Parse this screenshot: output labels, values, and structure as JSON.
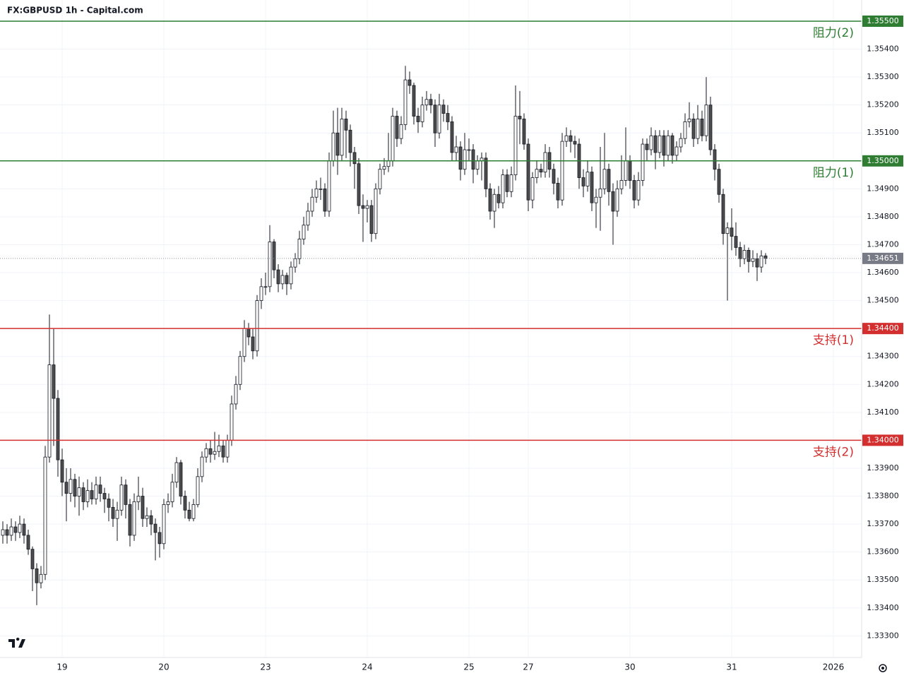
{
  "chart_data": {
    "type": "candlestick",
    "title": "FX:GBPUSD 1h - Capital.com",
    "ylim": [
      1.33225,
      1.355
    ],
    "xlim": [
      -0.5,
      202.5
    ],
    "yticks": [
      {
        "value": 1.333,
        "label": "1.33300"
      },
      {
        "value": 1.334,
        "label": "1.33400"
      },
      {
        "value": 1.335,
        "label": "1.33500"
      },
      {
        "value": 1.336,
        "label": "1.33600"
      },
      {
        "value": 1.337,
        "label": "1.33700"
      },
      {
        "value": 1.338,
        "label": "1.33800"
      },
      {
        "value": 1.339,
        "label": "1.33900"
      },
      {
        "value": 1.34,
        "label": "1.34000"
      },
      {
        "value": 1.341,
        "label": "1.34100"
      },
      {
        "value": 1.342,
        "label": "1.34200"
      },
      {
        "value": 1.343,
        "label": "1.34300"
      },
      {
        "value": 1.344,
        "label": "1.34400"
      },
      {
        "value": 1.345,
        "label": "1.34500"
      },
      {
        "value": 1.346,
        "label": "1.34600"
      },
      {
        "value": 1.347,
        "label": "1.34700"
      },
      {
        "value": 1.348,
        "label": "1.34800"
      },
      {
        "value": 1.349,
        "label": "1.34900"
      },
      {
        "value": 1.35,
        "label": "1.35000"
      },
      {
        "value": 1.351,
        "label": "1.35100"
      },
      {
        "value": 1.352,
        "label": "1.35200"
      },
      {
        "value": 1.353,
        "label": "1.35300"
      },
      {
        "value": 1.354,
        "label": "1.35400"
      }
    ],
    "xticks": [
      {
        "value": 14,
        "label": "19"
      },
      {
        "value": 38,
        "label": "20"
      },
      {
        "value": 62,
        "label": "23"
      },
      {
        "value": 86,
        "label": "24"
      },
      {
        "value": 110,
        "label": "25"
      },
      {
        "value": 124,
        "label": "27"
      },
      {
        "value": 148,
        "label": "30"
      },
      {
        "value": 172,
        "label": "31"
      },
      {
        "value": 196,
        "label": "2026"
      }
    ],
    "grid": true,
    "up_color": "#ffffff",
    "down_color": "#4d4d4d",
    "levels": [
      {
        "label": "阻力(2)",
        "value": 1.355,
        "value_label": "1.35500",
        "color": "#2e7d32"
      },
      {
        "label": "阻力(1)",
        "value": 1.35,
        "value_label": "1.35000",
        "color": "#2e7d32"
      },
      {
        "label": "支持(1)",
        "value": 1.344,
        "value_label": "1.34400",
        "color": "#d32f2f"
      },
      {
        "label": "支持(2)",
        "value": 1.34,
        "value_label": "1.34000",
        "color": "#d32f2f"
      }
    ],
    "last_price": {
      "value": 1.34651,
      "label": "1.34651"
    },
    "ohlc": [
      [
        1.3366,
        1.3371,
        1.3363,
        1.3368
      ],
      [
        1.3368,
        1.337,
        1.3363,
        1.3366
      ],
      [
        1.3366,
        1.3372,
        1.3364,
        1.3369
      ],
      [
        1.3369,
        1.3371,
        1.3364,
        1.3367
      ],
      [
        1.3367,
        1.3373,
        1.3365,
        1.337
      ],
      [
        1.337,
        1.3372,
        1.3363,
        1.3366
      ],
      [
        1.3366,
        1.3368,
        1.3359,
        1.3361
      ],
      [
        1.3361,
        1.3362,
        1.3346,
        1.3354
      ],
      [
        1.3354,
        1.3356,
        1.3341,
        1.3349
      ],
      [
        1.3349,
        1.3355,
        1.3347,
        1.3352
      ],
      [
        1.3352,
        1.3398,
        1.335,
        1.3394
      ],
      [
        1.3394,
        1.3445,
        1.3392,
        1.3427
      ],
      [
        1.3427,
        1.344,
        1.3398,
        1.3415
      ],
      [
        1.3415,
        1.3418,
        1.3387,
        1.3393
      ],
      [
        1.3393,
        1.3397,
        1.338,
        1.3385
      ],
      [
        1.3385,
        1.339,
        1.3371,
        1.3381
      ],
      [
        1.3381,
        1.339,
        1.3378,
        1.3386
      ],
      [
        1.3386,
        1.3388,
        1.3376,
        1.338
      ],
      [
        1.338,
        1.3387,
        1.3373,
        1.3383
      ],
      [
        1.3383,
        1.3385,
        1.3375,
        1.3378
      ],
      [
        1.3378,
        1.3386,
        1.3376,
        1.3382
      ],
      [
        1.3382,
        1.3385,
        1.3377,
        1.3379
      ],
      [
        1.3379,
        1.3387,
        1.3377,
        1.3384
      ],
      [
        1.3384,
        1.3387,
        1.3378,
        1.3381
      ],
      [
        1.3381,
        1.3383,
        1.3374,
        1.3379
      ],
      [
        1.3379,
        1.3381,
        1.3371,
        1.3376
      ],
      [
        1.3376,
        1.3379,
        1.3369,
        1.3372
      ],
      [
        1.3372,
        1.3378,
        1.3364,
        1.3375
      ],
      [
        1.3375,
        1.3387,
        1.3373,
        1.3384
      ],
      [
        1.3384,
        1.3386,
        1.3372,
        1.3377
      ],
      [
        1.3377,
        1.3379,
        1.3362,
        1.3366
      ],
      [
        1.3366,
        1.3381,
        1.3364,
        1.3378
      ],
      [
        1.3378,
        1.3387,
        1.3375,
        1.338
      ],
      [
        1.338,
        1.3383,
        1.3369,
        1.3372
      ],
      [
        1.3372,
        1.3376,
        1.3369,
        1.3373
      ],
      [
        1.3373,
        1.3375,
        1.3366,
        1.337
      ],
      [
        1.337,
        1.3372,
        1.3357,
        1.3367
      ],
      [
        1.3367,
        1.3369,
        1.3358,
        1.3363
      ],
      [
        1.3363,
        1.3379,
        1.3361,
        1.3377
      ],
      [
        1.3377,
        1.3381,
        1.3374,
        1.3378
      ],
      [
        1.3378,
        1.3388,
        1.3376,
        1.3385
      ],
      [
        1.3385,
        1.3394,
        1.3383,
        1.3392
      ],
      [
        1.3392,
        1.3393,
        1.3377,
        1.338
      ],
      [
        1.338,
        1.3382,
        1.3372,
        1.3375
      ],
      [
        1.3375,
        1.3378,
        1.3371,
        1.3372
      ],
      [
        1.3372,
        1.3379,
        1.3371,
        1.3377
      ],
      [
        1.3377,
        1.339,
        1.3376,
        1.3387
      ],
      [
        1.3387,
        1.3396,
        1.3385,
        1.3394
      ],
      [
        1.3394,
        1.3399,
        1.3392,
        1.3397
      ],
      [
        1.3397,
        1.34,
        1.3392,
        1.3395
      ],
      [
        1.3395,
        1.3403,
        1.3393,
        1.3396
      ],
      [
        1.3396,
        1.3402,
        1.3394,
        1.3398
      ],
      [
        1.3398,
        1.34,
        1.3392,
        1.3394
      ],
      [
        1.3394,
        1.3402,
        1.3392,
        1.34
      ],
      [
        1.34,
        1.3416,
        1.3398,
        1.3413
      ],
      [
        1.3413,
        1.3423,
        1.3411,
        1.342
      ],
      [
        1.342,
        1.3432,
        1.3418,
        1.343
      ],
      [
        1.343,
        1.3443,
        1.3428,
        1.344
      ],
      [
        1.344,
        1.3442,
        1.3434,
        1.3437
      ],
      [
        1.3437,
        1.344,
        1.3429,
        1.3432
      ],
      [
        1.3432,
        1.3452,
        1.343,
        1.345
      ],
      [
        1.345,
        1.3458,
        1.3447,
        1.3455
      ],
      [
        1.3455,
        1.346,
        1.3452,
        1.3455
      ],
      [
        1.3455,
        1.3477,
        1.3453,
        1.3471
      ],
      [
        1.3471,
        1.3472,
        1.3458,
        1.3461
      ],
      [
        1.3461,
        1.3463,
        1.3453,
        1.3456
      ],
      [
        1.3456,
        1.3461,
        1.3454,
        1.3459
      ],
      [
        1.3459,
        1.346,
        1.3452,
        1.3456
      ],
      [
        1.3456,
        1.3464,
        1.3454,
        1.3462
      ],
      [
        1.3462,
        1.3467,
        1.346,
        1.3465
      ],
      [
        1.3465,
        1.3475,
        1.3463,
        1.3472
      ],
      [
        1.3472,
        1.348,
        1.347,
        1.3477
      ],
      [
        1.3477,
        1.3485,
        1.3475,
        1.3482
      ],
      [
        1.3482,
        1.349,
        1.348,
        1.3487
      ],
      [
        1.3487,
        1.3493,
        1.3485,
        1.349
      ],
      [
        1.349,
        1.3494,
        1.3486,
        1.349
      ],
      [
        1.349,
        1.3492,
        1.348,
        1.3482
      ],
      [
        1.3482,
        1.3503,
        1.348,
        1.35
      ],
      [
        1.35,
        1.3518,
        1.3498,
        1.351
      ],
      [
        1.351,
        1.3519,
        1.3495,
        1.3502
      ],
      [
        1.3502,
        1.3519,
        1.35,
        1.3515
      ],
      [
        1.3515,
        1.3518,
        1.3501,
        1.3511
      ],
      [
        1.3511,
        1.3513,
        1.3498,
        1.3503
      ],
      [
        1.3503,
        1.3505,
        1.349,
        1.3499
      ],
      [
        1.3499,
        1.3501,
        1.3481,
        1.3484
      ],
      [
        1.3484,
        1.3488,
        1.3471,
        1.3483
      ],
      [
        1.3483,
        1.3486,
        1.3478,
        1.3484
      ],
      [
        1.3484,
        1.3486,
        1.3471,
        1.3474
      ],
      [
        1.3474,
        1.3492,
        1.3472,
        1.349
      ],
      [
        1.349,
        1.3499,
        1.3488,
        1.3497
      ],
      [
        1.3497,
        1.3501,
        1.3495,
        1.3498
      ],
      [
        1.3498,
        1.351,
        1.3496,
        1.35
      ],
      [
        1.35,
        1.3519,
        1.3498,
        1.3516
      ],
      [
        1.3516,
        1.3518,
        1.3505,
        1.3508
      ],
      [
        1.3508,
        1.3516,
        1.3506,
        1.3513
      ],
      [
        1.3513,
        1.3534,
        1.3511,
        1.3529
      ],
      [
        1.3529,
        1.3532,
        1.3524,
        1.3527
      ],
      [
        1.3527,
        1.3528,
        1.3513,
        1.3516
      ],
      [
        1.3516,
        1.3519,
        1.351,
        1.3514
      ],
      [
        1.3514,
        1.3523,
        1.3512,
        1.352
      ],
      [
        1.352,
        1.3525,
        1.3518,
        1.3522
      ],
      [
        1.3522,
        1.3524,
        1.3517,
        1.352
      ],
      [
        1.352,
        1.3522,
        1.3505,
        1.351
      ],
      [
        1.351,
        1.3524,
        1.3508,
        1.352
      ],
      [
        1.352,
        1.3522,
        1.3514,
        1.3517
      ],
      [
        1.3517,
        1.352,
        1.3511,
        1.3514
      ],
      [
        1.3514,
        1.3516,
        1.35,
        1.3503
      ],
      [
        1.3503,
        1.3509,
        1.35,
        1.3505
      ],
      [
        1.3505,
        1.3507,
        1.3493,
        1.3497
      ],
      [
        1.3497,
        1.351,
        1.3495,
        1.3504
      ],
      [
        1.3504,
        1.3508,
        1.35,
        1.3504
      ],
      [
        1.3504,
        1.3506,
        1.3492,
        1.3497
      ],
      [
        1.3497,
        1.3502,
        1.3495,
        1.35
      ],
      [
        1.35,
        1.3503,
        1.3493,
        1.3501
      ],
      [
        1.3501,
        1.3503,
        1.3487,
        1.349
      ],
      [
        1.349,
        1.3492,
        1.3479,
        1.3482
      ],
      [
        1.3482,
        1.349,
        1.3476,
        1.3488
      ],
      [
        1.3488,
        1.3491,
        1.3483,
        1.3485
      ],
      [
        1.3485,
        1.3497,
        1.3483,
        1.3495
      ],
      [
        1.3495,
        1.3497,
        1.3487,
        1.3489
      ],
      [
        1.3489,
        1.3498,
        1.3487,
        1.3495
      ],
      [
        1.3495,
        1.3527,
        1.3493,
        1.3516
      ],
      [
        1.3516,
        1.3525,
        1.3506,
        1.3515
      ],
      [
        1.3515,
        1.3517,
        1.3504,
        1.3506
      ],
      [
        1.3506,
        1.3508,
        1.3482,
        1.3486
      ],
      [
        1.3486,
        1.3496,
        1.3483,
        1.3494
      ],
      [
        1.3494,
        1.35,
        1.3492,
        1.3497
      ],
      [
        1.3497,
        1.3499,
        1.3494,
        1.3496
      ],
      [
        1.3496,
        1.3506,
        1.3494,
        1.3503
      ],
      [
        1.3503,
        1.3505,
        1.3494,
        1.3497
      ],
      [
        1.3497,
        1.3499,
        1.3488,
        1.3492
      ],
      [
        1.3492,
        1.3494,
        1.3483,
        1.3486
      ],
      [
        1.3486,
        1.351,
        1.3484,
        1.3507
      ],
      [
        1.3507,
        1.3512,
        1.3505,
        1.3509
      ],
      [
        1.3509,
        1.3511,
        1.3503,
        1.3507
      ],
      [
        1.3507,
        1.3509,
        1.3501,
        1.3506
      ],
      [
        1.3506,
        1.3508,
        1.349,
        1.3494
      ],
      [
        1.3494,
        1.3497,
        1.3487,
        1.3491
      ],
      [
        1.3491,
        1.35,
        1.3489,
        1.3496
      ],
      [
        1.3496,
        1.3498,
        1.3482,
        1.3485
      ],
      [
        1.3485,
        1.349,
        1.3476,
        1.3487
      ],
      [
        1.3487,
        1.3505,
        1.3475,
        1.349
      ],
      [
        1.349,
        1.351,
        1.3488,
        1.3497
      ],
      [
        1.3497,
        1.3499,
        1.3484,
        1.3489
      ],
      [
        1.3489,
        1.3492,
        1.347,
        1.3482
      ],
      [
        1.3482,
        1.3493,
        1.348,
        1.349
      ],
      [
        1.349,
        1.3502,
        1.3488,
        1.3493
      ],
      [
        1.3493,
        1.3512,
        1.3491,
        1.35
      ],
      [
        1.35,
        1.3502,
        1.349,
        1.3493
      ],
      [
        1.3493,
        1.3495,
        1.3483,
        1.3486
      ],
      [
        1.3486,
        1.3496,
        1.3484,
        1.3493
      ],
      [
        1.3493,
        1.3508,
        1.3491,
        1.3506
      ],
      [
        1.3506,
        1.3508,
        1.35,
        1.3504
      ],
      [
        1.3504,
        1.3512,
        1.3502,
        1.3509
      ],
      [
        1.3509,
        1.3511,
        1.3497,
        1.3503
      ],
      [
        1.3503,
        1.3511,
        1.3501,
        1.3509
      ],
      [
        1.3509,
        1.3511,
        1.3498,
        1.3502
      ],
      [
        1.3502,
        1.3511,
        1.35,
        1.3509
      ],
      [
        1.3509,
        1.351,
        1.3499,
        1.3502
      ],
      [
        1.3502,
        1.3507,
        1.35,
        1.3505
      ],
      [
        1.3505,
        1.351,
        1.3503,
        1.3508
      ],
      [
        1.3508,
        1.3517,
        1.3506,
        1.3514
      ],
      [
        1.3514,
        1.3521,
        1.3512,
        1.3515
      ],
      [
        1.3515,
        1.3517,
        1.3505,
        1.3508
      ],
      [
        1.3508,
        1.352,
        1.3506,
        1.3515
      ],
      [
        1.3515,
        1.3518,
        1.3507,
        1.3509
      ],
      [
        1.3509,
        1.353,
        1.3507,
        1.352
      ],
      [
        1.352,
        1.3523,
        1.3502,
        1.3504
      ],
      [
        1.3504,
        1.3506,
        1.3493,
        1.3497
      ],
      [
        1.3497,
        1.3499,
        1.3485,
        1.3488
      ],
      [
        1.3488,
        1.349,
        1.347,
        1.3474
      ],
      [
        1.3474,
        1.3478,
        1.345,
        1.3476
      ],
      [
        1.3476,
        1.3483,
        1.3468,
        1.3473
      ],
      [
        1.3473,
        1.3478,
        1.3466,
        1.3469
      ],
      [
        1.3469,
        1.3471,
        1.3462,
        1.3465
      ],
      [
        1.3465,
        1.347,
        1.3463,
        1.3468
      ],
      [
        1.3468,
        1.3469,
        1.346,
        1.3464
      ],
      [
        1.3464,
        1.3468,
        1.3462,
        1.3465
      ],
      [
        1.3465,
        1.3467,
        1.3457,
        1.3462
      ],
      [
        1.3462,
        1.3468,
        1.346,
        1.3466
      ],
      [
        1.3466,
        1.3467,
        1.3463,
        1.34651
      ]
    ]
  }
}
